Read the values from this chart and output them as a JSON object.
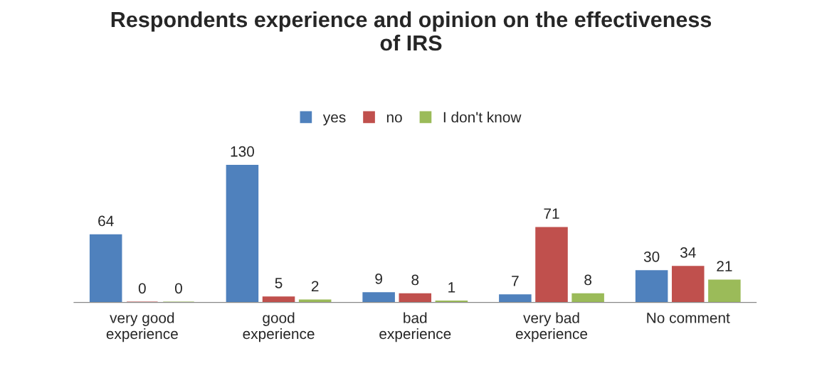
{
  "chart_data": {
    "type": "bar",
    "title": "Respondents experience and opinion on the effectiveness\nof IRS",
    "categories": [
      "very good\nexperience",
      "good\nexperience",
      "bad\nexperience",
      "very bad\nexperience",
      "No comment"
    ],
    "series": [
      {
        "name": "yes",
        "color": "#4f81bd",
        "values": [
          64,
          130,
          9,
          7,
          30
        ]
      },
      {
        "name": "no",
        "color": "#c0504d",
        "values": [
          0,
          5,
          8,
          71,
          34
        ]
      },
      {
        "name": "I don't know",
        "color": "#9bbb59",
        "values": [
          0,
          2,
          1,
          8,
          21
        ]
      }
    ],
    "data_labels": true,
    "legend": "top",
    "grid": false
  }
}
